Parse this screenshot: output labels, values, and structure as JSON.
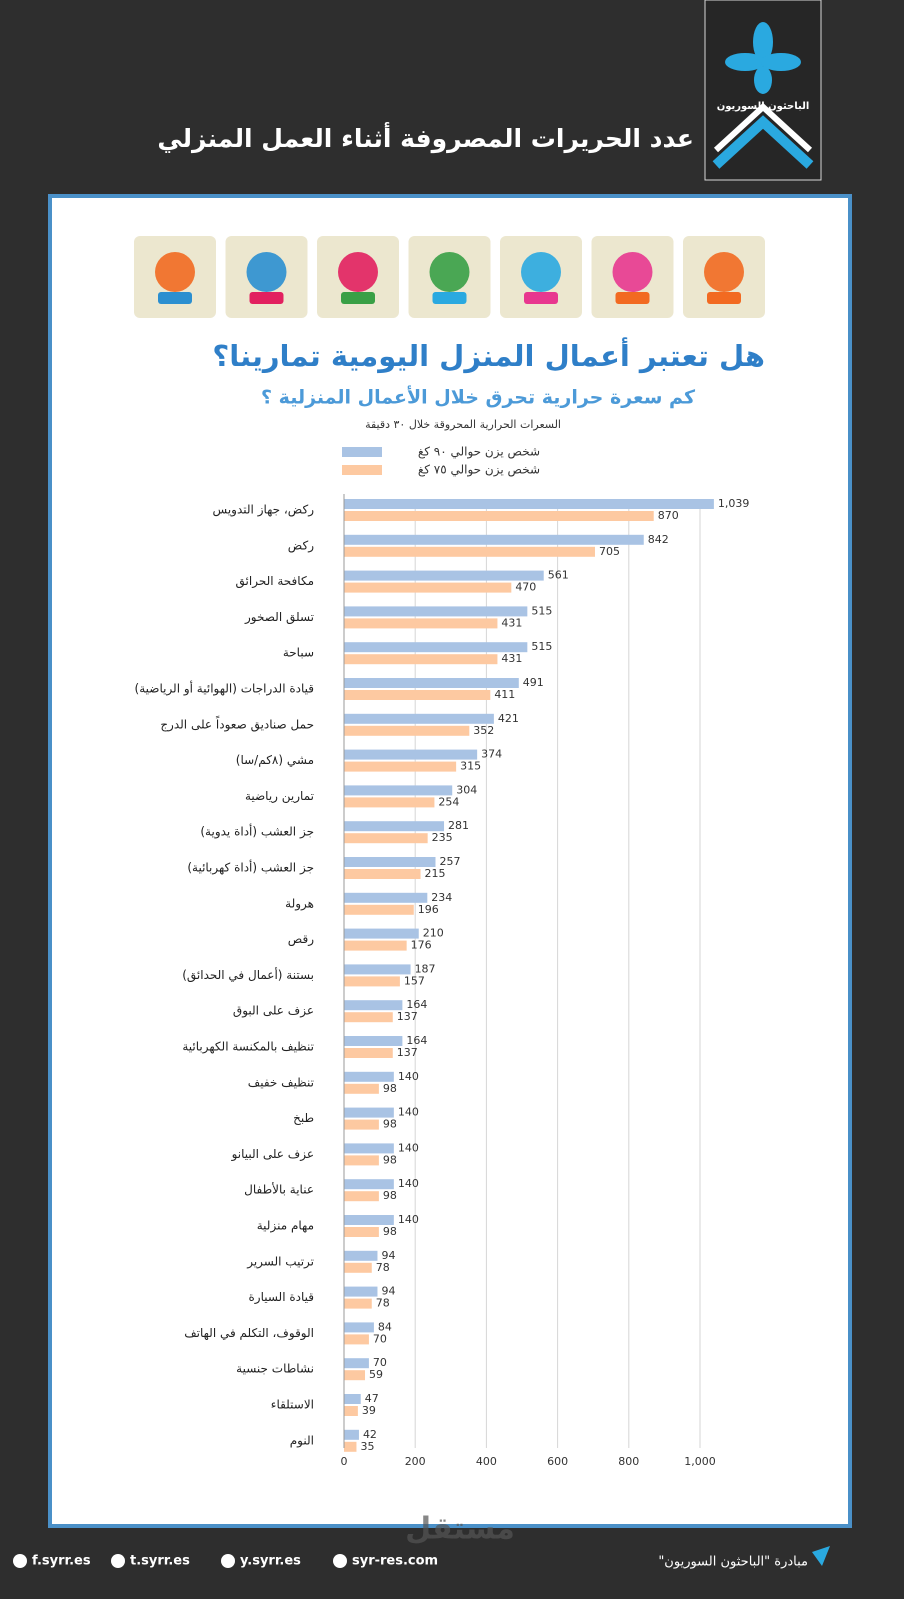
{
  "header": {
    "title": "عدد الحريرات المصروفة أثناء العمل المنزلي",
    "logo_text": "الباحثون السوريون"
  },
  "chart_data": {
    "type": "bar",
    "orientation": "horizontal",
    "title": "هل تعتبر أعمال المنزل اليومية تمارينا؟",
    "subtitle": "كم سعرة حرارية تحرق خلال الأعمال المنزلية ؟",
    "x_label": "السعرات الحرارية المحروقة خلال ٣٠ دقيقة",
    "categories": [
      "ركض، جهاز التدويس",
      "ركض",
      "مكافحة الحرائق",
      "تسلق الصخور",
      "سباحة",
      "قيادة الدراجات (الهوائية أو الرياضية)",
      "حمل صناديق صعوداً على الدرج",
      "مشي (٨كم/سا)",
      "تمارين رياضية",
      "جز العشب (أداة يدوية)",
      "جز العشب (أداة كهربائية)",
      "هرولة",
      "رقص",
      "بستنة (أعمال في الحدائق)",
      "عزف على البوق",
      "تنظيف بالمكنسة الكهربائية",
      "تنظيف خفيف",
      "طبخ",
      "عزف على البيانو",
      "عناية بالأطفال",
      "مهام منزلية",
      "ترتيب السرير",
      "قيادة السيارة",
      "الوقوف، التكلم في الهاتف",
      "نشاطات جنسية",
      "الاستلقاء",
      "النوم"
    ],
    "series": [
      {
        "name": "شخص يزن حوالي ٩٠ كغ",
        "color": "#a9c3e4",
        "values": [
          1039,
          842,
          561,
          515,
          515,
          491,
          421,
          374,
          304,
          281,
          257,
          234,
          210,
          187,
          164,
          164,
          140,
          140,
          140,
          140,
          140,
          94,
          94,
          84,
          70,
          47,
          42
        ],
        "value_labels": [
          "1,039",
          "842",
          "561",
          "515",
          "515",
          "491",
          "421",
          "374",
          "304",
          "281",
          "257",
          "234",
          "210",
          "187",
          "164",
          "164",
          "140",
          "140",
          "140",
          "140",
          "140",
          "94",
          "94",
          "84",
          "70",
          "47",
          "42"
        ]
      },
      {
        "name": "شخص يزن حوالي ٧٥ كغ",
        "color": "#fdc9a1",
        "values": [
          870,
          705,
          470,
          431,
          431,
          411,
          352,
          315,
          254,
          235,
          215,
          196,
          176,
          157,
          137,
          137,
          98,
          98,
          98,
          98,
          98,
          78,
          78,
          70,
          59,
          39,
          35
        ]
      }
    ],
    "xlim": [
      0,
      1000
    ],
    "xticks": [
      0,
      200,
      400,
      600,
      800,
      {
        "value": 1000,
        "label": "1,000"
      }
    ],
    "grid": true
  },
  "footer": {
    "links": [
      "f.syrr.es",
      "t.syrr.es",
      "y.syrr.es",
      "syr-res.com"
    ],
    "initiative": "مبادرة \"الباحثون السوريون\"",
    "watermark": "مستقل"
  }
}
